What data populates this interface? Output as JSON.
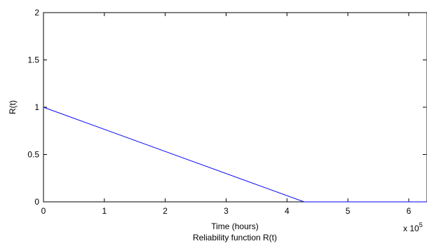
{
  "chart_data": {
    "type": "line",
    "title": "",
    "xlabel": "Time (hours)",
    "xlabel2": "Reliability function R(t)",
    "ylabel": "R(t)",
    "x_exponent_label": "x 10",
    "x_exponent_power": "5",
    "xlim": [
      0,
      6.3
    ],
    "ylim": [
      0,
      2
    ],
    "xticks": [
      0,
      1,
      2,
      3,
      4,
      5,
      6
    ],
    "xtick_labels": [
      "0",
      "1",
      "2",
      "3",
      "4",
      "5",
      "6"
    ],
    "yticks": [
      0,
      0.5,
      1,
      1.5,
      2
    ],
    "ytick_labels": [
      "0",
      "0.5",
      "1",
      "1.5",
      "2"
    ],
    "grid": false,
    "series": [
      {
        "color": "#0000ff",
        "x": [
          0,
          4.28,
          6.3
        ],
        "y": [
          1,
          0,
          0
        ]
      }
    ]
  }
}
